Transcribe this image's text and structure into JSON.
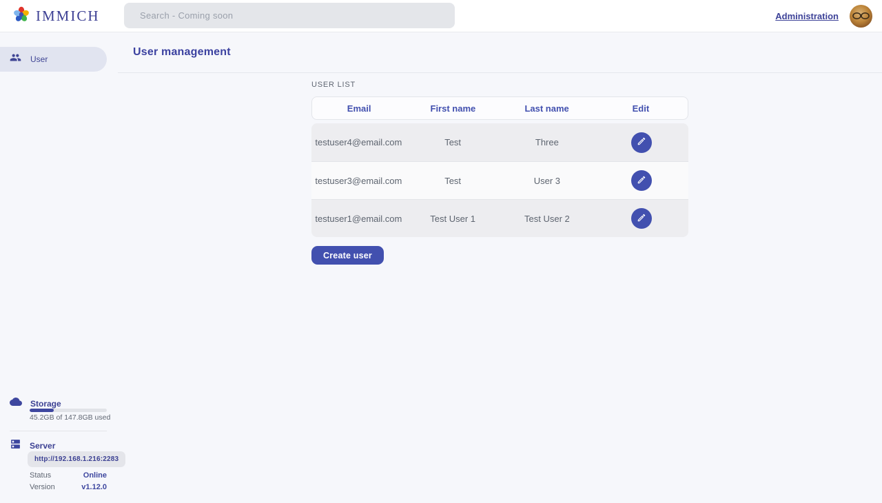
{
  "app": {
    "logo_text": "IMMICH"
  },
  "topbar": {
    "search_placeholder": "Search - Coming soon",
    "admin_link": "Administration"
  },
  "sidebar": {
    "items": [
      {
        "label": "User",
        "active": true
      }
    ],
    "storage": {
      "title": "Storage",
      "used_label": "45.2GB of 147.8GB used",
      "percent_used": 31
    },
    "server": {
      "title": "Server",
      "url": "http://192.168.1.216:2283",
      "rows": [
        {
          "label": "Status",
          "value": "Online"
        },
        {
          "label": "Version",
          "value": "v1.12.0"
        }
      ]
    }
  },
  "main": {
    "title": "User management",
    "section_label": "USER LIST",
    "table": {
      "headers": [
        "Email",
        "First name",
        "Last name",
        "Edit"
      ],
      "rows": [
        {
          "email": "testuser4@email.com",
          "first_name": "Test",
          "last_name": "Three"
        },
        {
          "email": "testuser3@email.com",
          "first_name": "Test",
          "last_name": "User 3"
        },
        {
          "email": "testuser1@email.com",
          "first_name": "Test User 1",
          "last_name": "Test User 2"
        }
      ]
    },
    "create_button_label": "Create user"
  },
  "icons": {
    "logo": "immich-flower-icon",
    "sidebar_user": "users-icon",
    "storage": "cloud-icon",
    "server": "server-icon",
    "edit": "pencil-icon"
  },
  "colors": {
    "primary": "#4250af",
    "page_background": "#f6f7fb",
    "row_alt": "#ededf0",
    "status_online": "#3e479f"
  }
}
